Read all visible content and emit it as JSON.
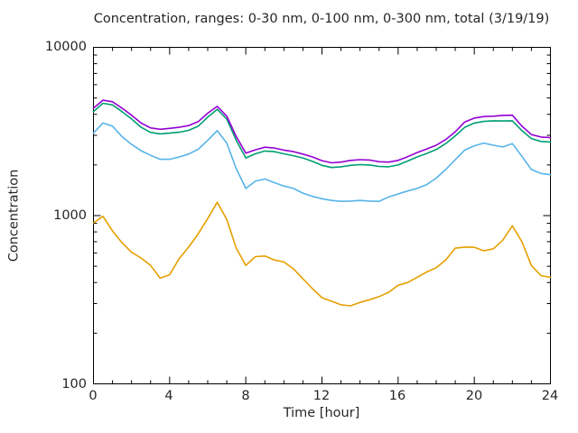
{
  "chart_data": {
    "type": "line",
    "title": "Concentration, ranges: 0-30 nm, 0-100 nm, 0-300 nm, total (3/19/19)",
    "xlabel": "Time [hour]",
    "ylabel": "Concentration",
    "legend": "none",
    "grid": false,
    "x_axis": {
      "min": 0,
      "max": 24,
      "major_ticks": [
        0,
        4,
        8,
        12,
        16,
        20,
        24
      ],
      "minor_tick_interval": 1
    },
    "y_axis": {
      "scale": "log",
      "min": 100,
      "max": 10000,
      "major_ticks": [
        100,
        1000,
        10000
      ],
      "minor_ticks": "log decades 2-9"
    },
    "x": [
      0,
      0.5,
      1,
      1.5,
      2,
      2.5,
      3,
      3.5,
      4,
      4.5,
      5,
      5.5,
      6,
      6.5,
      7,
      7.5,
      8,
      8.5,
      9,
      9.5,
      10,
      10.5,
      11,
      11.5,
      12,
      12.5,
      13,
      13.5,
      14,
      14.5,
      15,
      15.5,
      16,
      16.5,
      17,
      17.5,
      18,
      18.5,
      19,
      19.5,
      20,
      20.5,
      21,
      21.5,
      22,
      22.5,
      23,
      23.5,
      24
    ],
    "series": [
      {
        "name": "0-30 nm",
        "color": "#E69F00",
        "values": [
          905,
          990,
          810,
          690,
          605,
          560,
          505,
          425,
          445,
          555,
          650,
          780,
          960,
          1200,
          950,
          640,
          505,
          570,
          575,
          545,
          530,
          483,
          421,
          368,
          325,
          310,
          295,
          291,
          305,
          316,
          330,
          350,
          385,
          400,
          430,
          462,
          490,
          545,
          640,
          650,
          648,
          618,
          635,
          715,
          870,
          700,
          505,
          440,
          430
        ]
      },
      {
        "name": "0-100 nm",
        "color": "#56B4E9",
        "values": [
          3100,
          3550,
          3400,
          2950,
          2650,
          2430,
          2280,
          2160,
          2160,
          2230,
          2320,
          2480,
          2800,
          3200,
          2700,
          1900,
          1450,
          1600,
          1650,
          1570,
          1500,
          1450,
          1360,
          1300,
          1260,
          1230,
          1215,
          1220,
          1230,
          1220,
          1215,
          1290,
          1345,
          1400,
          1450,
          1530,
          1670,
          1880,
          2150,
          2450,
          2600,
          2700,
          2620,
          2560,
          2680,
          2250,
          1880,
          1780,
          1750
        ]
      },
      {
        "name": "0-300 nm",
        "color": "#009E73",
        "values": [
          4150,
          4650,
          4550,
          4150,
          3750,
          3350,
          3120,
          3060,
          3090,
          3130,
          3210,
          3400,
          3850,
          4280,
          3750,
          2800,
          2200,
          2330,
          2420,
          2400,
          2330,
          2270,
          2200,
          2100,
          1990,
          1930,
          1950,
          1990,
          2010,
          2000,
          1960,
          1950,
          2000,
          2110,
          2230,
          2340,
          2470,
          2680,
          2980,
          3350,
          3550,
          3630,
          3660,
          3650,
          3660,
          3200,
          2870,
          2760,
          2740
        ]
      },
      {
        "name": "total",
        "color": "#9400D3",
        "values": [
          4350,
          4850,
          4750,
          4350,
          3950,
          3550,
          3320,
          3260,
          3300,
          3350,
          3430,
          3620,
          4060,
          4460,
          3900,
          2950,
          2350,
          2460,
          2550,
          2520,
          2450,
          2400,
          2320,
          2230,
          2120,
          2060,
          2080,
          2130,
          2150,
          2140,
          2090,
          2080,
          2130,
          2240,
          2370,
          2490,
          2620,
          2830,
          3150,
          3600,
          3800,
          3880,
          3900,
          3940,
          3950,
          3400,
          3030,
          2930,
          2910
        ]
      }
    ],
    "axis_color": "#000000",
    "text_color": "#262626"
  }
}
